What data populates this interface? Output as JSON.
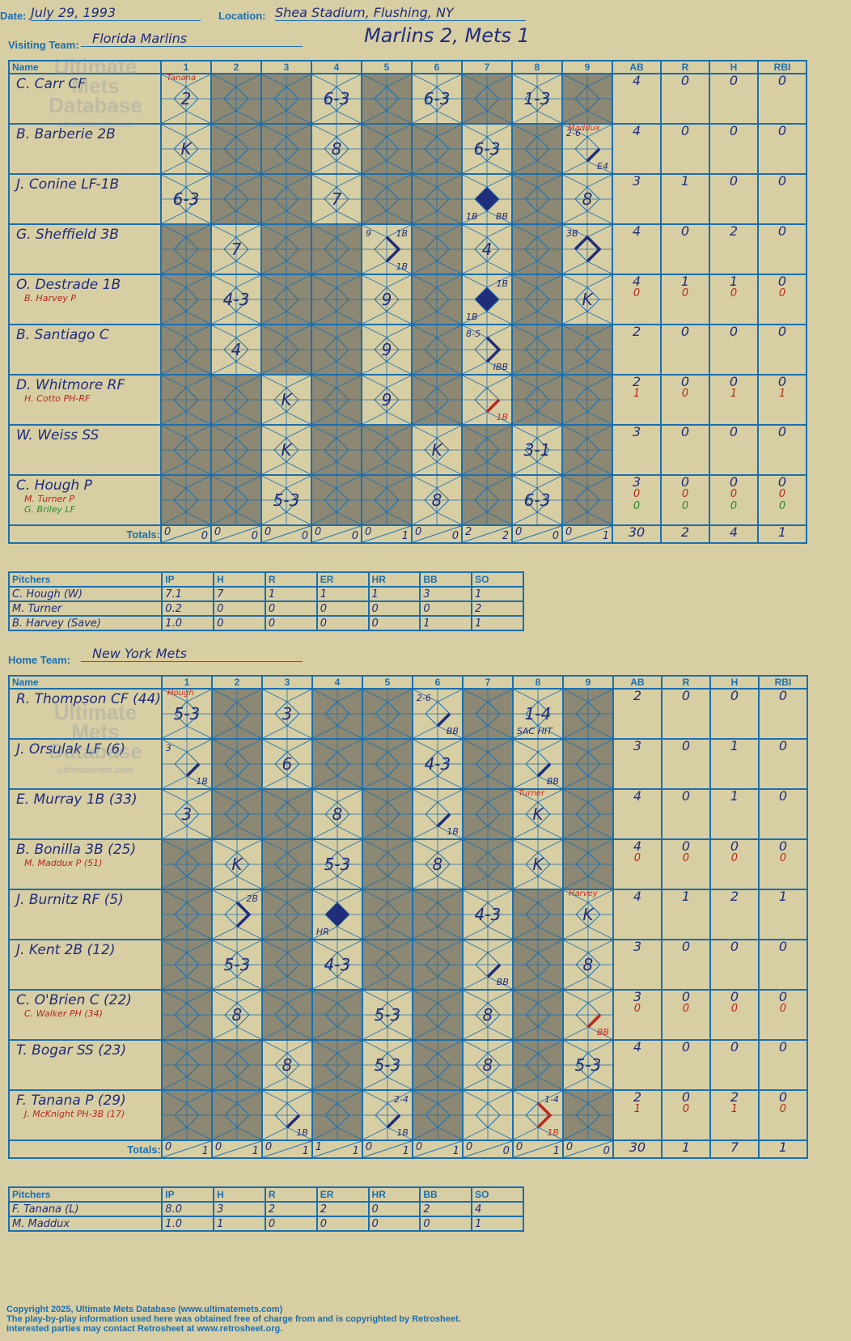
{
  "header": {
    "date_label": "Date:",
    "date": "July 29, 1993",
    "location_label": "Location:",
    "location": "Shea Stadium, Flushing, NY",
    "visiting_label": "Visiting Team:",
    "visiting_team": "Florida Marlins",
    "home_label": "Home Team:",
    "home_team": "New York Mets",
    "result": "Marlins 2, Mets 1"
  },
  "columns": {
    "name": "Name",
    "innings": [
      "1",
      "2",
      "3",
      "4",
      "5",
      "6",
      "7",
      "8",
      "9"
    ],
    "stats": [
      "AB",
      "R",
      "H",
      "RBI"
    ],
    "totals": "Totals:",
    "r": "R",
    "h": "H"
  },
  "watermark": {
    "line1": "Ultimate",
    "line2": "Mets",
    "line3": "Database",
    "site": "ultimatemets.com"
  },
  "visiting": {
    "players": [
      {
        "name": "C. Carr CF",
        "subs": [],
        "stats": [
          [
            "4"
          ],
          [
            "0"
          ],
          [
            "0"
          ],
          [
            "0"
          ]
        ]
      },
      {
        "name": "B. Barberie 2B",
        "subs": [],
        "stats": [
          [
            "4"
          ],
          [
            "0"
          ],
          [
            "0"
          ],
          [
            "0"
          ]
        ]
      },
      {
        "name": "J. Conine LF-1B",
        "subs": [],
        "stats": [
          [
            "3"
          ],
          [
            "1"
          ],
          [
            "0"
          ],
          [
            "0"
          ]
        ]
      },
      {
        "name": "G. Sheffield 3B",
        "subs": [],
        "stats": [
          [
            "4"
          ],
          [
            "0"
          ],
          [
            "2"
          ],
          [
            "0"
          ]
        ]
      },
      {
        "name": "O. Destrade 1B",
        "subs": [
          "B. Harvey P"
        ],
        "stats": [
          [
            "4",
            "0"
          ],
          [
            "1",
            "0"
          ],
          [
            "1",
            "0"
          ],
          [
            "0",
            "0"
          ]
        ]
      },
      {
        "name": "B. Santiago C",
        "subs": [],
        "stats": [
          [
            "2"
          ],
          [
            "0"
          ],
          [
            "0"
          ],
          [
            "0"
          ]
        ]
      },
      {
        "name": "D. Whitmore RF",
        "subs": [
          "H. Cotto PH-RF"
        ],
        "stats": [
          [
            "2",
            "1"
          ],
          [
            "0",
            "0"
          ],
          [
            "0",
            "1"
          ],
          [
            "0",
            "1"
          ]
        ]
      },
      {
        "name": "W. Weiss SS",
        "subs": [],
        "stats": [
          [
            "3"
          ],
          [
            "0"
          ],
          [
            "0"
          ],
          [
            "0"
          ]
        ]
      },
      {
        "name": "C. Hough P",
        "subs": [
          "M. Turner P",
          "G. Briley LF"
        ],
        "stats": [
          [
            "3",
            "0",
            "0"
          ],
          [
            "0",
            "0",
            "0"
          ],
          [
            "0",
            "0",
            "0"
          ],
          [
            "0",
            "0",
            "0"
          ]
        ]
      }
    ],
    "totals_rh": [
      [
        "0",
        "0"
      ],
      [
        "0",
        "0"
      ],
      [
        "0",
        "0"
      ],
      [
        "0",
        "0"
      ],
      [
        "0",
        "1"
      ],
      [
        "0",
        "0"
      ],
      [
        "2",
        "2"
      ],
      [
        "0",
        "0"
      ],
      [
        "0",
        "1"
      ]
    ],
    "totals_stats": [
      "30",
      "2",
      "4",
      "1"
    ],
    "pitchers_header": [
      "Pitchers",
      "IP",
      "H",
      "R",
      "ER",
      "HR",
      "BB",
      "SO"
    ],
    "pitchers": [
      [
        "C. Hough (W)",
        "7.1",
        "7",
        "1",
        "1",
        "1",
        "3",
        "1"
      ],
      [
        "M. Turner",
        "0.2",
        "0",
        "0",
        "0",
        "0",
        "0",
        "2"
      ],
      [
        "B. Harvey (Save)",
        "1.0",
        "0",
        "0",
        "0",
        "0",
        "1",
        "1"
      ]
    ]
  },
  "home": {
    "players": [
      {
        "name": "R. Thompson CF (44)",
        "subs": [],
        "stats": [
          [
            "2"
          ],
          [
            "0"
          ],
          [
            "0"
          ],
          [
            "0"
          ]
        ]
      },
      {
        "name": "J. Orsulak LF (6)",
        "subs": [],
        "stats": [
          [
            "3"
          ],
          [
            "0"
          ],
          [
            "1"
          ],
          [
            "0"
          ]
        ]
      },
      {
        "name": "E. Murray 1B (33)",
        "subs": [],
        "stats": [
          [
            "4"
          ],
          [
            "0"
          ],
          [
            "1"
          ],
          [
            "0"
          ]
        ]
      },
      {
        "name": "B. Bonilla 3B (25)",
        "subs": [
          "M. Maddux P (51)"
        ],
        "stats": [
          [
            "4",
            "0"
          ],
          [
            "0",
            "0"
          ],
          [
            "0",
            "0"
          ],
          [
            "0",
            "0"
          ]
        ]
      },
      {
        "name": "J. Burnitz RF (5)",
        "subs": [],
        "stats": [
          [
            "4"
          ],
          [
            "1"
          ],
          [
            "2"
          ],
          [
            "1"
          ]
        ]
      },
      {
        "name": "J. Kent 2B (12)",
        "subs": [],
        "stats": [
          [
            "3"
          ],
          [
            "0"
          ],
          [
            "0"
          ],
          [
            "0"
          ]
        ]
      },
      {
        "name": "C. O'Brien C (22)",
        "subs": [
          "C. Walker PH (34)"
        ],
        "stats": [
          [
            "3",
            "0"
          ],
          [
            "0",
            "0"
          ],
          [
            "0",
            "0"
          ],
          [
            "0",
            "0"
          ]
        ]
      },
      {
        "name": "T. Bogar SS (23)",
        "subs": [],
        "stats": [
          [
            "4"
          ],
          [
            "0"
          ],
          [
            "0"
          ],
          [
            "0"
          ]
        ]
      },
      {
        "name": "F. Tanana P (29)",
        "subs": [
          "J. McKnight PH-3B (17)"
        ],
        "stats": [
          [
            "2",
            "1"
          ],
          [
            "0",
            "0"
          ],
          [
            "2",
            "1"
          ],
          [
            "0",
            "0"
          ]
        ]
      }
    ],
    "totals_rh": [
      [
        "0",
        "1"
      ],
      [
        "0",
        "1"
      ],
      [
        "0",
        "1"
      ],
      [
        "1",
        "1"
      ],
      [
        "0",
        "1"
      ],
      [
        "0",
        "1"
      ],
      [
        "0",
        "0"
      ],
      [
        "0",
        "1"
      ],
      [
        "0",
        "0"
      ]
    ],
    "totals_stats": [
      "30",
      "1",
      "7",
      "1"
    ],
    "pitchers_header": [
      "Pitchers",
      "IP",
      "H",
      "R",
      "ER",
      "HR",
      "BB",
      "SO"
    ],
    "pitchers": [
      [
        "F. Tanana (L)",
        "8.0",
        "3",
        "2",
        "2",
        "0",
        "2",
        "4"
      ],
      [
        "M. Maddux",
        "1.0",
        "1",
        "0",
        "0",
        "0",
        "0",
        "1"
      ]
    ]
  },
  "visiting_cells": {
    "0": {
      "1": {
        "res": "2",
        "pitch": "Tanana"
      },
      "4": {
        "res": "6-3"
      },
      "6": {
        "res": "6-3"
      },
      "8": {
        "res": "1-3"
      }
    },
    "1": {
      "1": {
        "res": "K"
      },
      "4": {
        "res": "8"
      },
      "7": {
        "res": "6-3"
      },
      "9": {
        "pitch": "Maddux",
        "tl": "2-6",
        "br": "E4",
        "path": "1b"
      }
    },
    "2": {
      "1": {
        "res": "6-3"
      },
      "4": {
        "res": "7"
      },
      "7": {
        "scored": true,
        "bl": "1B",
        "br": "BB"
      },
      "9": {
        "res": "8"
      }
    },
    "3": {
      "2": {
        "res": "7"
      },
      "5": {
        "tl": "9",
        "tr": "1B",
        "br": "1B",
        "path": "2b"
      },
      "7": {
        "res": "4"
      },
      "9": {
        "tl": "3B",
        "path": "3b"
      }
    },
    "4": {
      "2": {
        "res": "4-3"
      },
      "5": {
        "res": "9"
      },
      "7": {
        "scored": true,
        "tr": "1B",
        "bl": "1B"
      },
      "9": {
        "res": "K"
      }
    },
    "5": {
      "2": {
        "res": "4"
      },
      "5": {
        "res": "9"
      },
      "7": {
        "tl": "8-5",
        "br": "IBB",
        "path": "2b"
      }
    },
    "6": {
      "3": {
        "res": "K"
      },
      "5": {
        "res": "9"
      },
      "7": {
        "br": "1B",
        "path": "1b",
        "red": true
      }
    },
    "7": {
      "3": {
        "res": "K"
      },
      "6": {
        "res": "K"
      },
      "8": {
        "res": "3-1"
      }
    },
    "8": {
      "3": {
        "res": "5-3"
      },
      "6": {
        "res": "8"
      },
      "8": {
        "res": "6-3"
      }
    }
  },
  "home_cells": {
    "0": {
      "1": {
        "res": "5-3",
        "pitch": "Hough"
      },
      "3": {
        "res": "3"
      },
      "6": {
        "tl": "2-6",
        "br": "BB",
        "path": "1b"
      },
      "8": {
        "res": "1-4",
        "bl": "SAC HIT"
      }
    },
    "1": {
      "1": {
        "tl": "3",
        "br": "1B",
        "path": "1b"
      },
      "3": {
        "res": "6"
      },
      "6": {
        "res": "4-3"
      },
      "8": {
        "br": "BB",
        "path": "1b"
      }
    },
    "2": {
      "1": {
        "res": "3"
      },
      "4": {
        "res": "8"
      },
      "6": {
        "br": "1B",
        "path": "1b"
      },
      "8": {
        "res": "K",
        "pitch": "Turner"
      }
    },
    "3": {
      "2": {
        "res": "K"
      },
      "4": {
        "res": "5-3"
      },
      "6": {
        "res": "8"
      },
      "8": {
        "res": "K"
      }
    },
    "4": {
      "2": {
        "tr": "2B",
        "path": "2b"
      },
      "4": {
        "scored": true,
        "bl": "HR"
      },
      "7": {
        "res": "4-3"
      },
      "9": {
        "res": "K",
        "pitch": "Harvey"
      }
    },
    "5": {
      "2": {
        "res": "5-3"
      },
      "4": {
        "res": "4-3"
      },
      "7": {
        "br": "BB",
        "path": "1b"
      },
      "9": {
        "res": "8"
      }
    },
    "6": {
      "2": {
        "res": "8"
      },
      "5": {
        "res": "5-3"
      },
      "7": {
        "res": "8"
      },
      "9": {
        "br": "BB",
        "path": "1b",
        "red": true
      }
    },
    "7": {
      "3": {
        "res": "8"
      },
      "5": {
        "res": "5-3"
      },
      "7": {
        "res": "8"
      },
      "9": {
        "res": "5-3"
      }
    },
    "8": {
      "3": {
        "br": "1B",
        "path": "1b"
      },
      "5": {
        "tr": "2-4",
        "br": "1B",
        "path": "1b"
      },
      "8": {
        "tr": "1-4",
        "br": "1B",
        "path": "2b",
        "red": true
      }
    }
  },
  "visiting_shade": {
    "0": [
      2,
      3,
      5,
      7,
      9
    ],
    "1": [
      2,
      3,
      5,
      6,
      8
    ],
    "2": [
      2,
      3,
      5,
      6,
      8
    ],
    "3": [
      1,
      3,
      4,
      6,
      8
    ],
    "4": [
      1,
      3,
      4,
      6,
      8
    ],
    "5": [
      1,
      3,
      4,
      6,
      8,
      9
    ],
    "6": [
      1,
      2,
      4,
      6,
      8,
      9
    ],
    "7": [
      1,
      2,
      4,
      5,
      7,
      9
    ],
    "8": [
      1,
      2,
      4,
      5,
      7,
      9
    ]
  },
  "home_shade": {
    "0": [
      2,
      4,
      5,
      7,
      9
    ],
    "1": [
      2,
      4,
      5,
      7,
      9
    ],
    "2": [
      2,
      3,
      5,
      7,
      9
    ],
    "3": [
      1,
      3,
      5,
      7,
      9
    ],
    "4": [
      1,
      3,
      5,
      6,
      8
    ],
    "5": [
      1,
      3,
      5,
      6,
      8
    ],
    "6": [
      1,
      3,
      4,
      6,
      8
    ],
    "7": [
      1,
      2,
      4,
      6,
      8
    ],
    "8": [
      1,
      2,
      4,
      6,
      9
    ]
  },
  "footer": {
    "line1": "Copyright 2025, Ultimate Mets Database (www.ultimatemets.com)",
    "line2": "The play-by-play information used here was obtained free of charge from and is copyrighted by Retrosheet.",
    "line3": "Interested parties may contact Retrosheet at www.retrosheet.org."
  }
}
